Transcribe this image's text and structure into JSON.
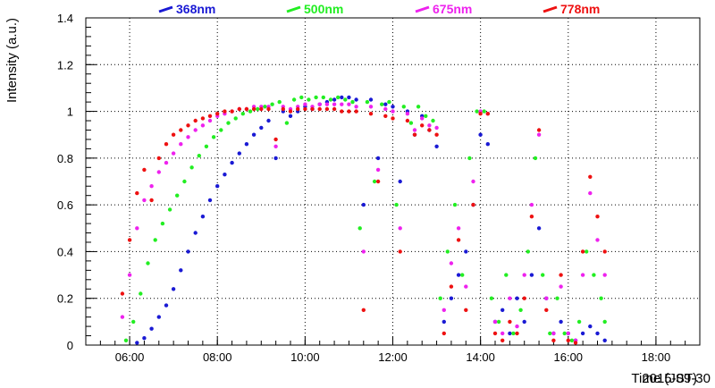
{
  "chart_data": {
    "type": "scatter",
    "xlabel": "Time (JST)",
    "ylabel": "Intensity (a.u.)",
    "date_label": "2015-09-30",
    "xlim": [
      "05:00",
      "19:00"
    ],
    "ylim": [
      0,
      1.4
    ],
    "x_ticks": [
      "06:00",
      "08:00",
      "10:00",
      "12:00",
      "14:00",
      "16:00",
      "18:00"
    ],
    "y_ticks": [
      "0",
      "0.2",
      "0.4",
      "0.6",
      "0.8",
      "1",
      "1.2",
      "1.4"
    ],
    "grid": true,
    "legend_position": "top",
    "series": [
      {
        "name": "368nm",
        "color": "#1a1ad4",
        "points": [
          [
            "06:10",
            0.01
          ],
          [
            "06:20",
            0.03
          ],
          [
            "06:30",
            0.07
          ],
          [
            "06:40",
            0.12
          ],
          [
            "06:50",
            0.17
          ],
          [
            "07:00",
            0.24
          ],
          [
            "07:10",
            0.32
          ],
          [
            "07:20",
            0.4
          ],
          [
            "07:30",
            0.48
          ],
          [
            "07:40",
            0.55
          ],
          [
            "07:50",
            0.62
          ],
          [
            "08:00",
            0.68
          ],
          [
            "08:10",
            0.73
          ],
          [
            "08:20",
            0.78
          ],
          [
            "08:30",
            0.82
          ],
          [
            "08:40",
            0.86
          ],
          [
            "08:50",
            0.9
          ],
          [
            "09:00",
            0.93
          ],
          [
            "09:10",
            0.96
          ],
          [
            "09:20",
            0.8
          ],
          [
            "09:30",
            1.0
          ],
          [
            "09:40",
            0.98
          ],
          [
            "09:50",
            1.0
          ],
          [
            "10:00",
            1.02
          ],
          [
            "10:10",
            1.01
          ],
          [
            "10:20",
            1.03
          ],
          [
            "10:30",
            1.04
          ],
          [
            "10:40",
            1.05
          ],
          [
            "10:50",
            1.06
          ],
          [
            "11:00",
            1.06
          ],
          [
            "11:10",
            1.05
          ],
          [
            "11:20",
            0.6
          ],
          [
            "11:30",
            1.05
          ],
          [
            "11:40",
            0.8
          ],
          [
            "11:50",
            1.03
          ],
          [
            "12:00",
            1.02
          ],
          [
            "12:10",
            0.7
          ],
          [
            "12:20",
            1.0
          ],
          [
            "12:30",
            0.9
          ],
          [
            "12:40",
            0.98
          ],
          [
            "12:50",
            0.92
          ],
          [
            "13:00",
            0.85
          ],
          [
            "13:10",
            0.1
          ],
          [
            "13:20",
            0.2
          ],
          [
            "13:30",
            0.3
          ],
          [
            "13:40",
            0.4
          ],
          [
            "13:50",
            0.6
          ],
          [
            "14:00",
            0.9
          ],
          [
            "14:10",
            0.86
          ],
          [
            "14:20",
            0.1
          ],
          [
            "14:30",
            0.15
          ],
          [
            "14:40",
            0.05
          ],
          [
            "14:50",
            0.2
          ],
          [
            "15:00",
            0.1
          ],
          [
            "15:10",
            0.3
          ],
          [
            "15:20",
            0.5
          ],
          [
            "15:30",
            0.2
          ],
          [
            "15:40",
            0.05
          ],
          [
            "15:50",
            0.1
          ],
          [
            "16:00",
            0.05
          ],
          [
            "16:10",
            0.02
          ],
          [
            "16:20",
            0.05
          ],
          [
            "16:30",
            0.08
          ],
          [
            "16:40",
            0.05
          ],
          [
            "16:50",
            0.02
          ]
        ]
      },
      {
        "name": "500nm",
        "color": "#22ee22",
        "points": [
          [
            "05:55",
            0.02
          ],
          [
            "06:05",
            0.1
          ],
          [
            "06:15",
            0.22
          ],
          [
            "06:25",
            0.35
          ],
          [
            "06:35",
            0.45
          ],
          [
            "06:45",
            0.52
          ],
          [
            "06:55",
            0.58
          ],
          [
            "07:05",
            0.64
          ],
          [
            "07:15",
            0.7
          ],
          [
            "07:25",
            0.76
          ],
          [
            "07:35",
            0.81
          ],
          [
            "07:45",
            0.85
          ],
          [
            "07:55",
            0.89
          ],
          [
            "08:05",
            0.92
          ],
          [
            "08:15",
            0.95
          ],
          [
            "08:25",
            0.97
          ],
          [
            "08:35",
            0.99
          ],
          [
            "08:45",
            1.0
          ],
          [
            "08:55",
            1.01
          ],
          [
            "09:05",
            1.02
          ],
          [
            "09:15",
            1.03
          ],
          [
            "09:25",
            1.04
          ],
          [
            "09:35",
            0.95
          ],
          [
            "09:45",
            1.05
          ],
          [
            "09:55",
            1.06
          ],
          [
            "10:05",
            1.05
          ],
          [
            "10:15",
            1.06
          ],
          [
            "10:25",
            1.06
          ],
          [
            "10:35",
            1.05
          ],
          [
            "10:45",
            1.06
          ],
          [
            "10:55",
            1.05
          ],
          [
            "11:05",
            1.04
          ],
          [
            "11:15",
            0.5
          ],
          [
            "11:25",
            1.04
          ],
          [
            "11:35",
            0.7
          ],
          [
            "11:45",
            1.03
          ],
          [
            "11:55",
            1.04
          ],
          [
            "12:05",
            0.6
          ],
          [
            "12:15",
            1.02
          ],
          [
            "12:25",
            0.95
          ],
          [
            "12:35",
            1.02
          ],
          [
            "12:45",
            0.98
          ],
          [
            "12:55",
            0.96
          ],
          [
            "13:05",
            0.2
          ],
          [
            "13:15",
            0.4
          ],
          [
            "13:25",
            0.6
          ],
          [
            "13:35",
            0.3
          ],
          [
            "13:45",
            0.8
          ],
          [
            "13:55",
            1.0
          ],
          [
            "14:05",
            1.0
          ],
          [
            "14:15",
            0.2
          ],
          [
            "14:25",
            0.1
          ],
          [
            "14:35",
            0.3
          ],
          [
            "14:45",
            0.05
          ],
          [
            "14:55",
            0.15
          ],
          [
            "15:05",
            0.4
          ],
          [
            "15:15",
            0.8
          ],
          [
            "15:25",
            0.3
          ],
          [
            "15:35",
            0.05
          ],
          [
            "15:45",
            0.2
          ],
          [
            "15:55",
            0.05
          ],
          [
            "16:05",
            0.02
          ],
          [
            "16:15",
            0.1
          ],
          [
            "16:25",
            0.4
          ],
          [
            "16:35",
            0.3
          ],
          [
            "16:45",
            0.2
          ],
          [
            "16:50",
            0.1
          ]
        ]
      },
      {
        "name": "675nm",
        "color": "#ee22ee",
        "points": [
          [
            "05:50",
            0.12
          ],
          [
            "06:00",
            0.3
          ],
          [
            "06:10",
            0.5
          ],
          [
            "06:20",
            0.62
          ],
          [
            "06:30",
            0.68
          ],
          [
            "06:40",
            0.74
          ],
          [
            "06:50",
            0.78
          ],
          [
            "07:00",
            0.82
          ],
          [
            "07:10",
            0.86
          ],
          [
            "07:20",
            0.89
          ],
          [
            "07:30",
            0.92
          ],
          [
            "07:40",
            0.94
          ],
          [
            "07:50",
            0.96
          ],
          [
            "08:00",
            0.98
          ],
          [
            "08:10",
            0.99
          ],
          [
            "08:20",
            1.0
          ],
          [
            "08:30",
            1.01
          ],
          [
            "08:40",
            1.01
          ],
          [
            "08:50",
            1.02
          ],
          [
            "09:00",
            1.02
          ],
          [
            "09:10",
            1.02
          ],
          [
            "09:20",
            0.85
          ],
          [
            "09:30",
            1.02
          ],
          [
            "09:40",
            1.01
          ],
          [
            "09:50",
            1.02
          ],
          [
            "10:00",
            1.03
          ],
          [
            "10:10",
            1.02
          ],
          [
            "10:20",
            1.03
          ],
          [
            "10:30",
            1.03
          ],
          [
            "10:40",
            1.03
          ],
          [
            "10:50",
            1.03
          ],
          [
            "11:00",
            1.03
          ],
          [
            "11:10",
            1.02
          ],
          [
            "11:20",
            0.4
          ],
          [
            "11:30",
            1.02
          ],
          [
            "11:40",
            0.75
          ],
          [
            "11:50",
            1.01
          ],
          [
            "12:00",
            1.0
          ],
          [
            "12:10",
            0.5
          ],
          [
            "12:20",
            0.99
          ],
          [
            "12:30",
            0.92
          ],
          [
            "12:40",
            0.97
          ],
          [
            "12:50",
            0.94
          ],
          [
            "13:00",
            0.93
          ],
          [
            "13:10",
            0.15
          ],
          [
            "13:20",
            0.35
          ],
          [
            "13:30",
            0.5
          ],
          [
            "13:40",
            0.25
          ],
          [
            "13:50",
            0.7
          ],
          [
            "14:00",
            1.0
          ],
          [
            "14:10",
            0.99
          ],
          [
            "14:20",
            0.1
          ],
          [
            "14:30",
            0.05
          ],
          [
            "14:40",
            0.2
          ],
          [
            "14:50",
            0.08
          ],
          [
            "15:00",
            0.3
          ],
          [
            "15:10",
            0.6
          ],
          [
            "15:20",
            0.9
          ],
          [
            "15:30",
            0.2
          ],
          [
            "15:40",
            0.05
          ],
          [
            "15:50",
            0.25
          ],
          [
            "16:00",
            0.05
          ],
          [
            "16:10",
            0.02
          ],
          [
            "16:20",
            0.3
          ],
          [
            "16:30",
            0.65
          ],
          [
            "16:40",
            0.45
          ],
          [
            "16:50",
            0.3
          ]
        ]
      },
      {
        "name": "778nm",
        "color": "#ee1111",
        "points": [
          [
            "05:50",
            0.22
          ],
          [
            "06:00",
            0.45
          ],
          [
            "06:10",
            0.65
          ],
          [
            "06:20",
            0.75
          ],
          [
            "06:30",
            0.62
          ],
          [
            "06:40",
            0.8
          ],
          [
            "06:50",
            0.86
          ],
          [
            "07:00",
            0.9
          ],
          [
            "07:10",
            0.92
          ],
          [
            "07:20",
            0.94
          ],
          [
            "07:30",
            0.96
          ],
          [
            "07:40",
            0.97
          ],
          [
            "07:50",
            0.98
          ],
          [
            "08:00",
            0.99
          ],
          [
            "08:10",
            1.0
          ],
          [
            "08:20",
            1.0
          ],
          [
            "08:30",
            1.01
          ],
          [
            "08:40",
            1.01
          ],
          [
            "08:50",
            1.01
          ],
          [
            "09:00",
            1.01
          ],
          [
            "09:10",
            1.01
          ],
          [
            "09:20",
            0.88
          ],
          [
            "09:30",
            1.01
          ],
          [
            "09:40",
            1.0
          ],
          [
            "09:50",
            1.01
          ],
          [
            "10:00",
            1.01
          ],
          [
            "10:10",
            1.01
          ],
          [
            "10:20",
            1.01
          ],
          [
            "10:30",
            1.01
          ],
          [
            "10:40",
            1.01
          ],
          [
            "10:50",
            1.0
          ],
          [
            "11:00",
            1.0
          ],
          [
            "11:10",
            1.0
          ],
          [
            "11:20",
            0.15
          ],
          [
            "11:30",
            0.99
          ],
          [
            "11:40",
            0.7
          ],
          [
            "11:50",
            0.98
          ],
          [
            "12:00",
            0.97
          ],
          [
            "12:10",
            0.4
          ],
          [
            "12:20",
            0.96
          ],
          [
            "12:30",
            0.9
          ],
          [
            "12:40",
            0.94
          ],
          [
            "12:50",
            0.92
          ],
          [
            "13:00",
            0.9
          ],
          [
            "13:10",
            0.05
          ],
          [
            "13:20",
            0.25
          ],
          [
            "13:30",
            0.45
          ],
          [
            "13:40",
            0.15
          ],
          [
            "13:50",
            0.6
          ],
          [
            "14:00",
            0.99
          ],
          [
            "14:10",
            0.99
          ],
          [
            "14:20",
            0.05
          ],
          [
            "14:30",
            0.02
          ],
          [
            "14:40",
            0.1
          ],
          [
            "14:50",
            0.05
          ],
          [
            "15:00",
            0.2
          ],
          [
            "15:10",
            0.55
          ],
          [
            "15:20",
            0.92
          ],
          [
            "15:30",
            0.15
          ],
          [
            "15:40",
            0.02
          ],
          [
            "15:50",
            0.3
          ],
          [
            "16:00",
            0.02
          ],
          [
            "16:10",
            0.01
          ],
          [
            "16:20",
            0.4
          ],
          [
            "16:30",
            0.72
          ],
          [
            "16:40",
            0.55
          ],
          [
            "16:50",
            0.4
          ]
        ]
      }
    ]
  }
}
